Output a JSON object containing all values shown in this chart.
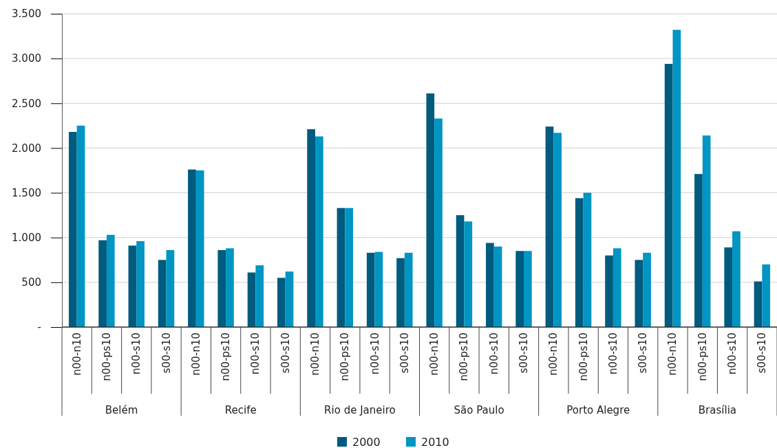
{
  "chart_data": {
    "type": "bar",
    "categories": [
      "n00-n10",
      "n00-ps10",
      "n00-s10",
      "s00-s10",
      "n00-n10",
      "n00-ps10",
      "n00-s10",
      "s00-s10",
      "n00-n10",
      "n00-ps10",
      "n00-s10",
      "s00-s10",
      "n00-n10",
      "n00-ps10",
      "n00-s10",
      "s00-s10",
      "n00-n10",
      "n00-ps10",
      "n00-s10",
      "s00-s10",
      "n00-n10",
      "n00-ps10",
      "n00-s10",
      "s00-s10"
    ],
    "annotations": [
      "Belém",
      "Recife",
      "Rio de Janeiro",
      "São Paulo",
      "Porto Alegre",
      "Brasília"
    ],
    "series": [
      {
        "name": "2000",
        "color": "#005b7f",
        "values": [
          2180,
          970,
          910,
          750,
          1760,
          860,
          610,
          550,
          2210,
          1330,
          830,
          770,
          2610,
          1250,
          940,
          850,
          2240,
          1440,
          800,
          750,
          2940,
          1710,
          890,
          510
        ]
      },
      {
        "name": "2010",
        "color": "#0095c2",
        "values": [
          2250,
          1030,
          960,
          860,
          1750,
          880,
          690,
          620,
          2130,
          1330,
          840,
          830,
          2330,
          1180,
          900,
          850,
          2170,
          1500,
          880,
          830,
          3320,
          2140,
          1070,
          700
        ]
      }
    ],
    "ylim": [
      0,
      3500
    ],
    "yticks": [
      {
        "value": 0,
        "label": "-"
      },
      {
        "value": 500,
        "label": "500"
      },
      {
        "value": 1000,
        "label": "1.000"
      },
      {
        "value": 1500,
        "label": "1.500"
      },
      {
        "value": 2000,
        "label": "2.000"
      },
      {
        "value": 2500,
        "label": "2.500"
      },
      {
        "value": 3000,
        "label": "3.000"
      },
      {
        "value": 3500,
        "label": "3.500"
      }
    ],
    "grid": "y",
    "legend": "bottom"
  }
}
